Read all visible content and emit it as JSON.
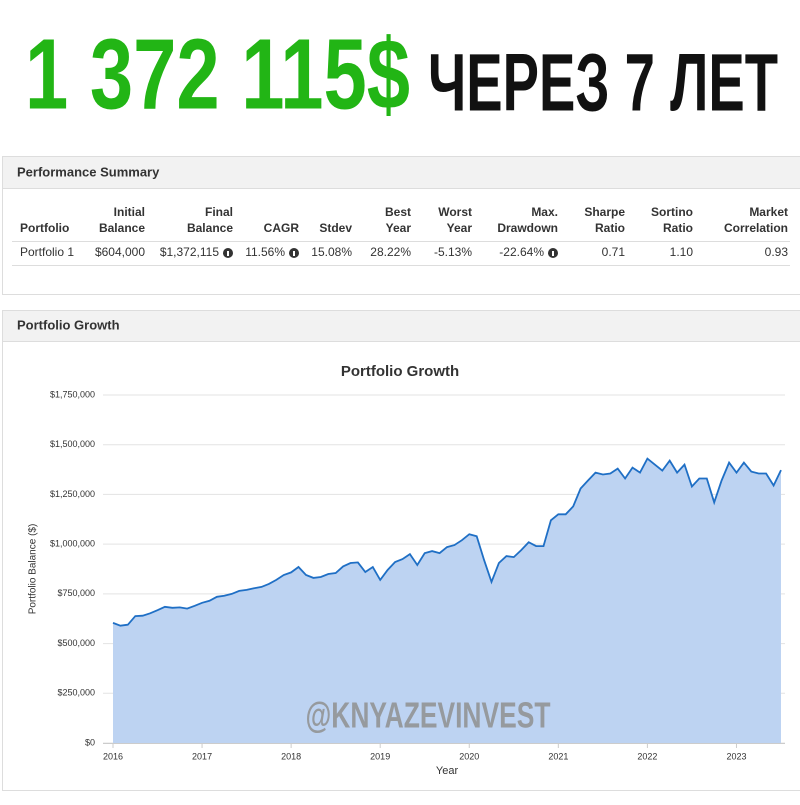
{
  "headline": {
    "amount": "1 372 115$",
    "text": "ЧЕРЕЗ 7 ЛЕТ"
  },
  "summary": {
    "title": "Performance Summary",
    "headers": [
      [
        "Portfolio"
      ],
      [
        "Initial",
        "Balance"
      ],
      [
        "Final",
        "Balance"
      ],
      [
        "CAGR"
      ],
      [
        "Stdev"
      ],
      [
        "Best",
        "Year"
      ],
      [
        "Worst",
        "Year"
      ],
      [
        "Max.",
        "Drawdown"
      ],
      [
        "Sharpe",
        "Ratio"
      ],
      [
        "Sortino",
        "Ratio"
      ],
      [
        "Market",
        "Correlation"
      ]
    ],
    "row": [
      "Portfolio 1",
      "$604,000",
      "$1,372,115",
      "11.56%",
      "15.08%",
      "28.22%",
      "-5.13%",
      "-22.64%",
      "0.71",
      "1.10",
      "0.93"
    ]
  },
  "growth_panel": {
    "title": "Portfolio Growth"
  },
  "watermark": "@KNYAZEVINVEST",
  "chart_data": {
    "type": "area",
    "title": "Portfolio Growth",
    "x_label": "Year",
    "y_label": "Portfolio Balance ($)",
    "x": [
      2016,
      2016.083,
      2016.167,
      2016.25,
      2016.333,
      2016.417,
      2016.5,
      2016.583,
      2016.667,
      2016.75,
      2016.833,
      2016.917,
      2017,
      2017.083,
      2017.167,
      2017.25,
      2017.333,
      2017.417,
      2017.5,
      2017.583,
      2017.667,
      2017.75,
      2017.833,
      2017.917,
      2018,
      2018.083,
      2018.167,
      2018.25,
      2018.333,
      2018.417,
      2018.5,
      2018.583,
      2018.667,
      2018.75,
      2018.833,
      2018.917,
      2019,
      2019.083,
      2019.167,
      2019.25,
      2019.333,
      2019.417,
      2019.5,
      2019.583,
      2019.667,
      2019.75,
      2019.833,
      2019.917,
      2020,
      2020.083,
      2020.167,
      2020.25,
      2020.333,
      2020.417,
      2020.5,
      2020.583,
      2020.667,
      2020.75,
      2020.833,
      2020.917,
      2021,
      2021.083,
      2021.167,
      2021.25,
      2021.333,
      2021.417,
      2021.5,
      2021.583,
      2021.667,
      2021.75,
      2021.833,
      2021.917,
      2022,
      2022.083,
      2022.167,
      2022.25,
      2022.333,
      2022.417,
      2022.5,
      2022.583,
      2022.667,
      2022.75,
      2022.833,
      2022.917,
      2023,
      2023.083,
      2023.167,
      2023.25,
      2023.333,
      2023.417,
      2023.5
    ],
    "series": [
      {
        "name": "Portfolio 1",
        "color": "#1f6fc5",
        "fill": "#bdd3f2",
        "values": [
          604000,
          590000,
          595000,
          638000,
          640000,
          652000,
          668000,
          685000,
          680000,
          682000,
          676000,
          690000,
          705000,
          715000,
          735000,
          740000,
          750000,
          765000,
          770000,
          778000,
          785000,
          800000,
          820000,
          845000,
          858000,
          885000,
          845000,
          830000,
          835000,
          850000,
          855000,
          888000,
          905000,
          908000,
          860000,
          885000,
          820000,
          870000,
          910000,
          925000,
          950000,
          895000,
          955000,
          965000,
          955000,
          985000,
          995000,
          1020000,
          1050000,
          1040000,
          920000,
          810000,
          905000,
          940000,
          935000,
          970000,
          1010000,
          990000,
          990000,
          1120000,
          1150000,
          1150000,
          1190000,
          1280000,
          1320000,
          1360000,
          1350000,
          1355000,
          1380000,
          1330000,
          1385000,
          1360000,
          1430000,
          1400000,
          1370000,
          1420000,
          1360000,
          1400000,
          1290000,
          1330000,
          1330000,
          1210000,
          1320000,
          1410000,
          1360000,
          1410000,
          1365000,
          1355000,
          1355000,
          1295000,
          1372115
        ]
      }
    ],
    "xlim": [
      2016,
      2023.5
    ],
    "xticks": [
      2016,
      2017,
      2018,
      2019,
      2020,
      2021,
      2022,
      2023
    ],
    "ylim": [
      0,
      1750000
    ],
    "yticks": [
      {
        "value": 0,
        "label": "$0"
      },
      {
        "value": 250000,
        "label": "$250,000"
      },
      {
        "value": 500000,
        "label": "$500,000"
      },
      {
        "value": 750000,
        "label": "$750,000"
      },
      {
        "value": 1000000,
        "label": "$1,000,000"
      },
      {
        "value": 1250000,
        "label": "$1,250,000"
      },
      {
        "value": 1500000,
        "label": "$1,500,000"
      },
      {
        "value": 1750000,
        "label": "$1,750,000"
      }
    ],
    "grid": true
  }
}
